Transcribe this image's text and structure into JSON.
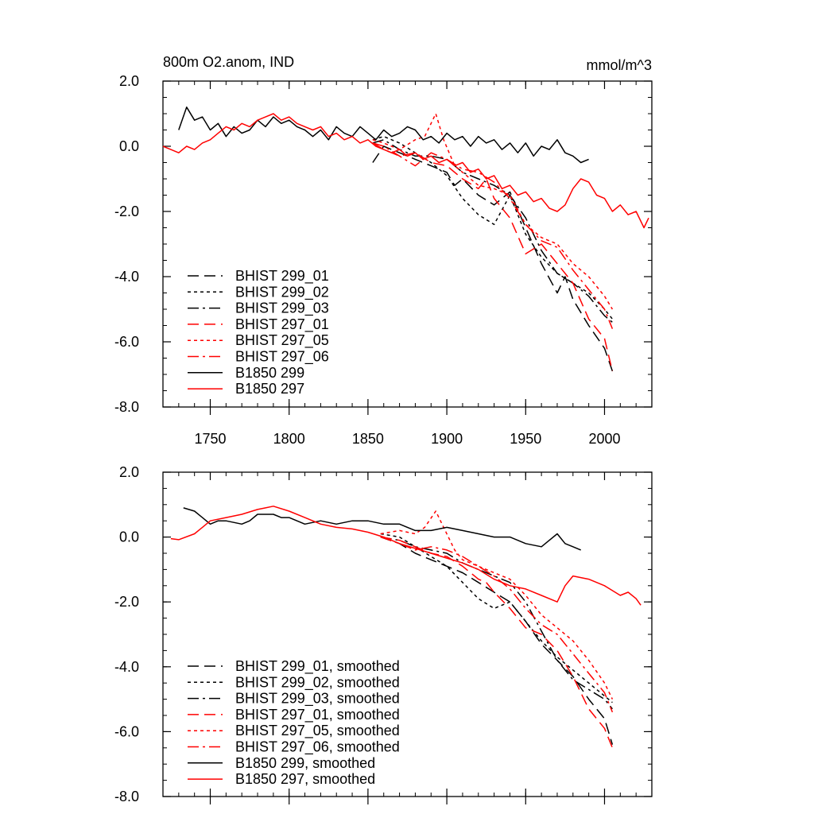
{
  "title_left": "800m O2.anom, IND",
  "title_right": "mmol/m^3",
  "colors": {
    "black": "#000000",
    "red": "#ff0000"
  },
  "chart_data": [
    {
      "type": "line",
      "xlim": [
        1720,
        2030
      ],
      "ylim": [
        -8,
        2
      ],
      "yticks": [
        "2.0",
        "0.0",
        "-2.0",
        "-4.0",
        "-6.0",
        "-8.0"
      ],
      "xticks": [
        "1750",
        "1800",
        "1850",
        "1900",
        "1950",
        "2000"
      ],
      "legend_position": "bottom-left",
      "series": [
        {
          "name": "BHIST 299_01",
          "color": "#000000",
          "dash": "dashed",
          "x": [
            1853,
            1860,
            1870,
            1880,
            1890,
            1900,
            1905,
            1910,
            1920,
            1930,
            1940,
            1950,
            1960,
            1970,
            1975,
            1980,
            1990,
            2000,
            2005
          ],
          "y": [
            -0.5,
            0.0,
            -0.2,
            -0.4,
            -0.6,
            -0.8,
            -1.2,
            -1.0,
            -1.5,
            -1.8,
            -1.4,
            -2.5,
            -3.6,
            -4.5,
            -4.0,
            -4.7,
            -5.5,
            -6.2,
            -6.9
          ]
        },
        {
          "name": "BHIST 299_02",
          "color": "#000000",
          "dash": "dotted",
          "x": [
            1853,
            1860,
            1870,
            1880,
            1890,
            1900,
            1910,
            1920,
            1930,
            1940,
            1950,
            1960,
            1970,
            1980,
            1990,
            2000,
            2005
          ],
          "y": [
            0.2,
            0.3,
            0.1,
            -0.2,
            -0.5,
            -0.9,
            -1.6,
            -2.1,
            -2.4,
            -1.5,
            -2.7,
            -3.4,
            -3.9,
            -4.2,
            -4.5,
            -5.0,
            -5.3
          ]
        },
        {
          "name": "BHIST 299_03",
          "color": "#000000",
          "dash": "dashdot",
          "x": [
            1853,
            1860,
            1870,
            1880,
            1890,
            1900,
            1910,
            1920,
            1930,
            1940,
            1950,
            1960,
            1970,
            1980,
            1990,
            2000,
            2005
          ],
          "y": [
            0.1,
            0.2,
            -0.1,
            -0.3,
            -0.3,
            -0.4,
            -0.8,
            -1.0,
            -1.2,
            -1.5,
            -2.2,
            -3.2,
            -3.9,
            -4.2,
            -4.6,
            -5.2,
            -5.4
          ]
        },
        {
          "name": "BHIST 297_01",
          "color": "#ff0000",
          "dash": "dashed",
          "x": [
            1853,
            1860,
            1870,
            1880,
            1890,
            1900,
            1910,
            1920,
            1925,
            1930,
            1940,
            1950,
            1960,
            1970,
            1980,
            1990,
            2000,
            2005
          ],
          "y": [
            0.1,
            -0.1,
            -0.3,
            -0.2,
            -0.5,
            -0.6,
            -1.0,
            -1.3,
            -1.0,
            -1.6,
            -2.2,
            -3.3,
            -3.0,
            -3.6,
            -4.2,
            -5.3,
            -5.9,
            -6.9
          ]
        },
        {
          "name": "BHIST 297_05",
          "color": "#ff0000",
          "dash": "dotted",
          "x": [
            1853,
            1860,
            1870,
            1880,
            1886,
            1893,
            1898,
            1905,
            1910,
            1920,
            1930,
            1940,
            1950,
            1960,
            1970,
            1980,
            1990,
            2000,
            2005
          ],
          "y": [
            0.2,
            0.1,
            -0.1,
            0.2,
            0.3,
            1.0,
            0.2,
            -0.6,
            -0.8,
            -1.2,
            -1.3,
            -1.5,
            -2.4,
            -2.8,
            -3.0,
            -3.6,
            -4.0,
            -4.6,
            -5.0
          ]
        },
        {
          "name": "BHIST 297_06",
          "color": "#ff0000",
          "dash": "dashdot",
          "x": [
            1853,
            1860,
            1870,
            1880,
            1890,
            1900,
            1910,
            1920,
            1930,
            1940,
            1950,
            1960,
            1970,
            1980,
            1990,
            2000,
            2005
          ],
          "y": [
            0.1,
            0.0,
            -0.3,
            -0.6,
            -0.2,
            -0.4,
            -0.7,
            -0.8,
            -1.1,
            -1.6,
            -2.4,
            -2.9,
            -3.1,
            -3.8,
            -4.4,
            -5.0,
            -5.6
          ]
        },
        {
          "name": "B1850 299",
          "color": "#000000",
          "dash": "solid",
          "x": [
            1730,
            1735,
            1740,
            1745,
            1750,
            1755,
            1760,
            1765,
            1770,
            1775,
            1780,
            1785,
            1790,
            1795,
            1800,
            1805,
            1810,
            1815,
            1820,
            1825,
            1830,
            1835,
            1840,
            1845,
            1850,
            1855,
            1860,
            1865,
            1870,
            1875,
            1880,
            1885,
            1890,
            1895,
            1900,
            1905,
            1910,
            1915,
            1920,
            1925,
            1930,
            1935,
            1940,
            1945,
            1950,
            1955,
            1960,
            1965,
            1970,
            1975,
            1980,
            1985,
            1990
          ],
          "y": [
            0.5,
            1.2,
            0.8,
            0.9,
            0.5,
            0.7,
            0.3,
            0.6,
            0.4,
            0.5,
            0.8,
            0.6,
            0.9,
            0.7,
            0.8,
            0.6,
            0.5,
            0.3,
            0.5,
            0.2,
            0.6,
            0.4,
            0.3,
            0.6,
            0.4,
            0.2,
            0.5,
            0.3,
            0.4,
            0.6,
            0.5,
            0.2,
            0.3,
            0.1,
            0.4,
            0.2,
            0.3,
            0.0,
            0.3,
            0.1,
            0.2,
            -0.1,
            0.1,
            -0.2,
            0.1,
            -0.3,
            0.0,
            -0.1,
            0.2,
            -0.2,
            -0.3,
            -0.5,
            -0.4
          ]
        },
        {
          "name": "B1850 297",
          "color": "#ff0000",
          "dash": "solid",
          "x": [
            1720,
            1725,
            1730,
            1735,
            1740,
            1745,
            1750,
            1755,
            1760,
            1765,
            1770,
            1775,
            1780,
            1785,
            1790,
            1795,
            1800,
            1805,
            1810,
            1815,
            1820,
            1825,
            1830,
            1835,
            1840,
            1845,
            1850,
            1855,
            1860,
            1865,
            1870,
            1875,
            1880,
            1885,
            1890,
            1895,
            1900,
            1905,
            1910,
            1915,
            1920,
            1925,
            1930,
            1935,
            1940,
            1945,
            1950,
            1955,
            1960,
            1965,
            1970,
            1975,
            1980,
            1985,
            1990,
            1995,
            2000,
            2005,
            2010,
            2015,
            2020,
            2025,
            2028
          ],
          "y": [
            0.0,
            -0.1,
            -0.2,
            0.0,
            -0.1,
            0.1,
            0.2,
            0.4,
            0.6,
            0.5,
            0.7,
            0.6,
            0.8,
            0.9,
            1.0,
            0.8,
            0.9,
            0.7,
            0.6,
            0.5,
            0.6,
            0.3,
            0.4,
            0.2,
            0.3,
            0.1,
            0.2,
            0.0,
            -0.1,
            -0.2,
            -0.1,
            -0.3,
            -0.2,
            -0.4,
            -0.3,
            -0.5,
            -0.4,
            -0.6,
            -0.5,
            -0.8,
            -0.7,
            -1.0,
            -0.9,
            -1.3,
            -1.2,
            -1.5,
            -1.4,
            -1.7,
            -1.6,
            -1.9,
            -2.0,
            -1.8,
            -1.3,
            -1.0,
            -1.1,
            -1.5,
            -1.6,
            -2.0,
            -1.8,
            -2.1,
            -2.0,
            -2.5,
            -2.2
          ]
        }
      ]
    },
    {
      "type": "line",
      "xlim": [
        1720,
        2030
      ],
      "ylim": [
        -8,
        2
      ],
      "yticks": [
        "2.0",
        "0.0",
        "-2.0",
        "-4.0",
        "-6.0",
        "-8.0"
      ],
      "legend_position": "bottom-left",
      "series": [
        {
          "name": "BHIST 299_01, smoothed",
          "color": "#000000",
          "dash": "dashed",
          "x": [
            1858,
            1870,
            1880,
            1890,
            1900,
            1910,
            1920,
            1930,
            1940,
            1950,
            1960,
            1970,
            1980,
            1990,
            2000,
            2005
          ],
          "y": [
            0.0,
            -0.2,
            -0.5,
            -0.7,
            -0.9,
            -1.1,
            -1.4,
            -1.7,
            -2.0,
            -2.6,
            -3.3,
            -3.8,
            -4.3,
            -5.0,
            -5.6,
            -6.4
          ]
        },
        {
          "name": "BHIST 299_02, smoothed",
          "color": "#000000",
          "dash": "dotted",
          "x": [
            1858,
            1870,
            1880,
            1890,
            1900,
            1910,
            1920,
            1930,
            1940,
            1950,
            1960,
            1970,
            1980,
            1990,
            2000,
            2005
          ],
          "y": [
            0.1,
            0.0,
            -0.3,
            -0.6,
            -0.9,
            -1.4,
            -1.9,
            -2.2,
            -2.0,
            -2.6,
            -3.2,
            -3.7,
            -4.1,
            -4.5,
            -4.9,
            -5.1
          ]
        },
        {
          "name": "BHIST 299_03, smoothed",
          "color": "#000000",
          "dash": "dashdot",
          "x": [
            1858,
            1870,
            1880,
            1890,
            1900,
            1910,
            1920,
            1930,
            1940,
            1950,
            1960,
            1970,
            1980,
            1990,
            2000,
            2005
          ],
          "y": [
            0.0,
            -0.1,
            -0.3,
            -0.4,
            -0.5,
            -0.8,
            -1.0,
            -1.2,
            -1.4,
            -2.0,
            -2.9,
            -3.8,
            -4.4,
            -4.7,
            -5.0,
            -5.3
          ]
        },
        {
          "name": "BHIST 297_01, smoothed",
          "color": "#ff0000",
          "dash": "dashed",
          "x": [
            1858,
            1870,
            1880,
            1890,
            1900,
            1910,
            1920,
            1925,
            1930,
            1940,
            1950,
            1960,
            1970,
            1980,
            1990,
            2000,
            2005
          ],
          "y": [
            0.0,
            -0.1,
            -0.3,
            -0.5,
            -0.6,
            -0.9,
            -1.3,
            -1.4,
            -1.7,
            -2.2,
            -2.8,
            -3.0,
            -3.5,
            -4.3,
            -5.3,
            -5.9,
            -6.5
          ]
        },
        {
          "name": "BHIST 297_05, smoothed",
          "color": "#ff0000",
          "dash": "dotted",
          "x": [
            1858,
            1870,
            1880,
            1886,
            1893,
            1898,
            1905,
            1910,
            1920,
            1930,
            1940,
            1950,
            1960,
            1970,
            1980,
            1990,
            2000,
            2005
          ],
          "y": [
            0.1,
            0.2,
            0.1,
            0.3,
            0.8,
            0.3,
            -0.4,
            -0.7,
            -0.9,
            -1.1,
            -1.3,
            -1.8,
            -2.4,
            -2.8,
            -3.2,
            -3.8,
            -4.5,
            -5.0
          ]
        },
        {
          "name": "BHIST 297_06, smoothed",
          "color": "#ff0000",
          "dash": "dashdot",
          "x": [
            1858,
            1870,
            1880,
            1890,
            1900,
            1910,
            1920,
            1930,
            1940,
            1950,
            1960,
            1970,
            1980,
            1990,
            2000,
            2005
          ],
          "y": [
            0.0,
            -0.2,
            -0.4,
            -0.3,
            -0.4,
            -0.6,
            -0.9,
            -1.2,
            -1.6,
            -2.2,
            -2.7,
            -3.0,
            -3.6,
            -4.2,
            -4.8,
            -5.4
          ]
        },
        {
          "name": "B1850 299, smoothed",
          "color": "#000000",
          "dash": "solid",
          "x": [
            1733,
            1740,
            1745,
            1750,
            1755,
            1760,
            1770,
            1775,
            1780,
            1790,
            1795,
            1800,
            1810,
            1820,
            1830,
            1840,
            1850,
            1860,
            1870,
            1880,
            1890,
            1900,
            1910,
            1920,
            1930,
            1940,
            1950,
            1960,
            1965,
            1970,
            1975,
            1980,
            1985
          ],
          "y": [
            0.9,
            0.8,
            0.6,
            0.4,
            0.5,
            0.5,
            0.4,
            0.5,
            0.7,
            0.7,
            0.6,
            0.6,
            0.4,
            0.5,
            0.4,
            0.5,
            0.5,
            0.4,
            0.4,
            0.2,
            0.2,
            0.3,
            0.2,
            0.1,
            0.0,
            0.0,
            -0.2,
            -0.3,
            -0.1,
            0.1,
            -0.2,
            -0.3,
            -0.4
          ]
        },
        {
          "name": "B1850 297, smoothed",
          "color": "#ff0000",
          "dash": "solid",
          "x": [
            1725,
            1730,
            1740,
            1745,
            1750,
            1760,
            1770,
            1780,
            1785,
            1790,
            1800,
            1810,
            1820,
            1830,
            1840,
            1850,
            1860,
            1870,
            1880,
            1890,
            1900,
            1910,
            1920,
            1930,
            1940,
            1950,
            1960,
            1970,
            1975,
            1980,
            1990,
            2000,
            2010,
            2015,
            2020,
            2023
          ],
          "y": [
            -0.05,
            -0.08,
            0.1,
            0.3,
            0.5,
            0.6,
            0.7,
            0.85,
            0.9,
            0.95,
            0.8,
            0.6,
            0.4,
            0.3,
            0.25,
            0.15,
            0.0,
            -0.2,
            -0.35,
            -0.5,
            -0.65,
            -0.8,
            -1.0,
            -1.3,
            -1.5,
            -1.6,
            -1.8,
            -2.0,
            -1.5,
            -1.2,
            -1.3,
            -1.5,
            -1.8,
            -1.7,
            -1.9,
            -2.1
          ]
        }
      ]
    }
  ]
}
